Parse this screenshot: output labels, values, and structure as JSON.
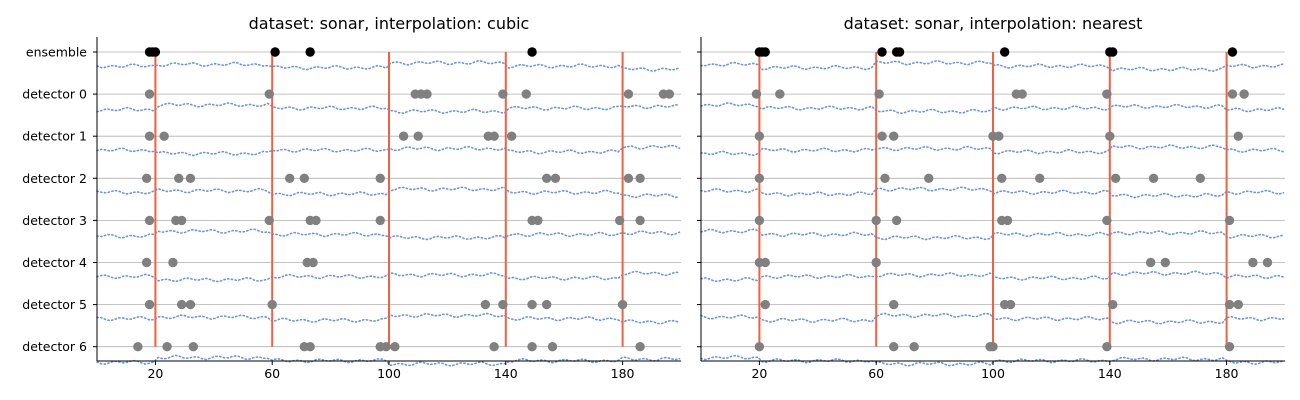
{
  "chart_data": [
    {
      "type": "scatter",
      "title": "dataset: sonar, interpolation: cubic",
      "xlabel": "",
      "ylabel": "",
      "xlim": [
        0,
        200
      ],
      "xticks": [
        "20",
        "60",
        "100",
        "140",
        "180"
      ],
      "rows": [
        "ensemble",
        "detector 0",
        "detector 1",
        "detector 2",
        "detector 3",
        "detector 4",
        "detector 5",
        "detector 6"
      ],
      "grid": "horizontal",
      "change_points": [
        20,
        60,
        100,
        140,
        180
      ],
      "colors": {
        "change_line": "#f0623f",
        "ensemble_points": "#000000",
        "detector_points": "#808080",
        "signal": "#6495ed",
        "grid": "#b0b0b0"
      },
      "detections": [
        [
          18,
          19,
          20,
          61,
          73,
          149
        ],
        [
          18,
          59,
          109,
          111,
          113,
          139,
          147,
          182,
          194,
          196
        ],
        [
          18,
          23,
          105,
          110,
          134,
          136,
          142
        ],
        [
          17,
          28,
          32,
          66,
          71,
          97,
          154,
          157,
          182,
          186
        ],
        [
          18,
          27,
          29,
          59,
          73,
          75,
          97,
          149,
          151,
          179,
          186
        ],
        [
          17,
          26,
          72,
          74
        ],
        [
          18,
          29,
          32,
          60,
          133,
          139,
          149,
          154,
          180
        ],
        [
          14,
          24,
          33,
          71,
          73,
          97,
          99,
          102,
          136,
          149,
          156,
          186
        ]
      ]
    },
    {
      "type": "scatter",
      "title": "dataset: sonar, interpolation: nearest",
      "xlabel": "",
      "ylabel": "",
      "xlim": [
        0,
        200
      ],
      "xticks": [
        "20",
        "60",
        "100",
        "140",
        "180"
      ],
      "rows": [
        "ensemble",
        "detector 0",
        "detector 1",
        "detector 2",
        "detector 3",
        "detector 4",
        "detector 5",
        "detector 6"
      ],
      "grid": "horizontal",
      "change_points": [
        20,
        60,
        100,
        140,
        180
      ],
      "colors": {
        "change_line": "#f0623f",
        "ensemble_points": "#000000",
        "detector_points": "#808080",
        "signal": "#6495ed",
        "grid": "#b0b0b0"
      },
      "detections": [
        [
          20,
          21,
          22,
          62,
          67,
          68,
          104,
          140,
          141,
          182
        ],
        [
          19,
          27,
          61,
          108,
          110,
          139,
          182,
          186
        ],
        [
          20,
          62,
          66,
          100,
          102,
          140,
          184
        ],
        [
          20,
          63,
          78,
          103,
          116,
          142,
          155,
          171
        ],
        [
          20,
          60,
          67,
          103,
          105,
          139,
          181
        ],
        [
          20,
          22,
          60,
          154,
          159,
          189,
          194
        ],
        [
          22,
          66,
          104,
          106,
          141,
          181,
          184
        ],
        [
          20,
          66,
          73,
          99,
          100,
          139,
          181
        ]
      ]
    }
  ]
}
